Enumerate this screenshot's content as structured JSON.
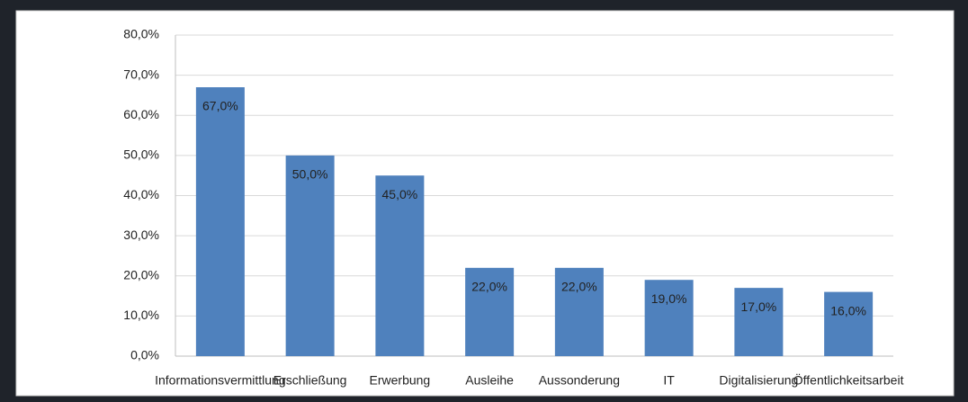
{
  "chart_data": {
    "type": "bar",
    "categories": [
      "Informationsvermittlung",
      "Erschließung",
      "Erwerbung",
      "Ausleihe",
      "Aussonderung",
      "IT",
      "Digitalisierung",
      "Öffentlichkeitsarbeit"
    ],
    "values": [
      67,
      50,
      45,
      22,
      22,
      19,
      17,
      16
    ],
    "value_labels": [
      "67,0%",
      "50,0%",
      "45,0%",
      "22,0%",
      "22,0%",
      "19,0%",
      "17,0%",
      "16,0%"
    ],
    "color": "#4f81bd",
    "ylim": [
      0,
      80
    ],
    "yticks": [
      {
        "value": 0,
        "label": "0,0%"
      },
      {
        "value": 10,
        "label": "10,0%"
      },
      {
        "value": 20,
        "label": "20,0%"
      },
      {
        "value": 30,
        "label": "30,0%"
      },
      {
        "value": 40,
        "label": "40,0%"
      },
      {
        "value": 50,
        "label": "50,0%"
      },
      {
        "value": 60,
        "label": "60,0%"
      },
      {
        "value": 70,
        "label": "70,0%"
      },
      {
        "value": 80,
        "label": "80,0%"
      }
    ],
    "grid": true
  }
}
